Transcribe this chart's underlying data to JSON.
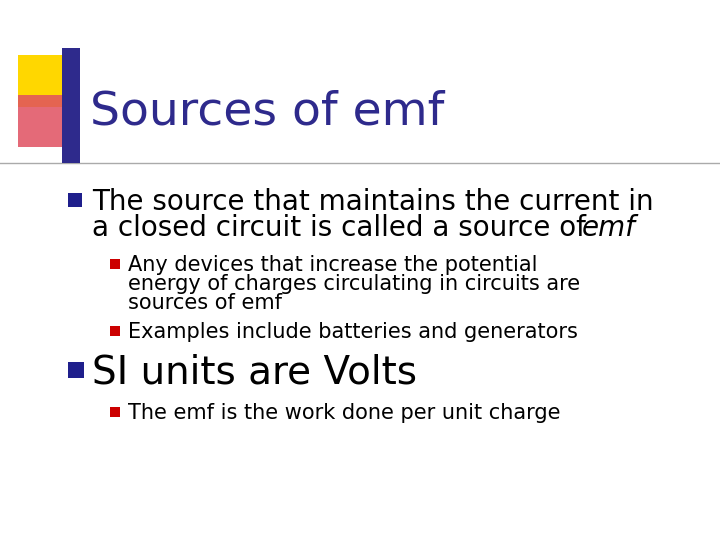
{
  "title": "Sources of emf",
  "title_color": "#2E2A8C",
  "title_fontsize": 34,
  "bg_color": "#FFFFFF",
  "bullet1_line1": "The source that maintains the current in",
  "bullet1_line2": "a closed circuit is called a source of ",
  "bullet1_italic": "emf",
  "bullet1_fontsize": 20,
  "sub_bullet1_line1": "Any devices that increase the potential",
  "sub_bullet1_line2": "energy of charges circulating in circuits are",
  "sub_bullet1_line3": "sources of emf",
  "sub_bullet2_text": "Examples include batteries and generators",
  "sub_bullet_fontsize": 15,
  "bullet2_text": "SI units are Volts",
  "bullet2_fontsize": 28,
  "sub_bullet3_text": "The emf is the work done per unit charge",
  "sub_bullet3_fontsize": 15,
  "bullet_color": "#1F1F8C",
  "sub_bullet_color": "#CC0000",
  "text_color": "#000000",
  "line_color": "#AAAAAA",
  "yellow_color": "#FFD700",
  "red_color": "#E05060",
  "blue_color": "#2E2A8C"
}
